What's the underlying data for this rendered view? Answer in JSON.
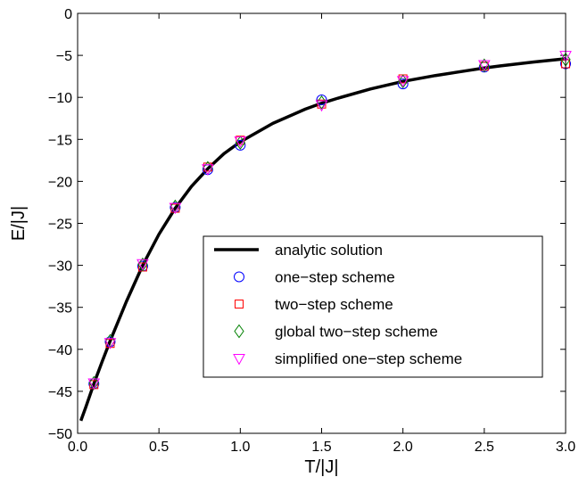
{
  "chart_data": {
    "type": "line",
    "xlabel": "T/|J|",
    "ylabel": "E/|J|",
    "xlim": [
      0.0,
      3.0
    ],
    "ylim": [
      -50,
      0
    ],
    "xticks": [
      0.0,
      0.5,
      1.0,
      1.5,
      2.0,
      2.5,
      3.0
    ],
    "xtick_labels": [
      "0.0",
      "0.5",
      "1.0",
      "1.5",
      "2.0",
      "2.5",
      "3.0"
    ],
    "yticks": [
      0,
      -5,
      -10,
      -15,
      -20,
      -25,
      -30,
      -35,
      -40,
      -45,
      -50
    ],
    "ytick_labels": [
      "0",
      "−5",
      "−10",
      "−15",
      "−20",
      "−25",
      "−30",
      "−35",
      "−40",
      "−45",
      "−50"
    ],
    "grid": false,
    "legend_position": "lower-right",
    "series": [
      {
        "name": "analytic solution",
        "kind": "line",
        "color": "#000000",
        "x": [
          0.02,
          0.05,
          0.1,
          0.15,
          0.2,
          0.3,
          0.4,
          0.5,
          0.6,
          0.7,
          0.8,
          0.9,
          1.0,
          1.2,
          1.4,
          1.5,
          1.6,
          1.8,
          2.0,
          2.2,
          2.4,
          2.5,
          2.6,
          2.8,
          3.0
        ],
        "y": [
          -48.5,
          -46.9,
          -44.1,
          -41.5,
          -39.0,
          -34.3,
          -30.0,
          -26.3,
          -23.2,
          -20.6,
          -18.5,
          -16.7,
          -15.3,
          -13.1,
          -11.4,
          -10.7,
          -10.1,
          -9.0,
          -8.1,
          -7.4,
          -6.8,
          -6.5,
          -6.25,
          -5.8,
          -5.4
        ]
      },
      {
        "name": "one−step scheme",
        "kind": "marker",
        "marker": "circle",
        "color": "#0000ff",
        "x": [
          0.1,
          0.2,
          0.4,
          0.6,
          0.8,
          1.0,
          1.5,
          2.0,
          2.5,
          3.0
        ],
        "y": [
          -44.1,
          -39.1,
          -30.1,
          -23.1,
          -18.6,
          -15.7,
          -10.3,
          -8.4,
          -6.4,
          -6.0
        ]
      },
      {
        "name": "two−step scheme",
        "kind": "marker",
        "marker": "square",
        "color": "#ff0000",
        "x": [
          0.1,
          0.2,
          0.4,
          0.6,
          0.8,
          1.0,
          1.5,
          2.0,
          2.5,
          3.0
        ],
        "y": [
          -44.2,
          -39.3,
          -30.2,
          -23.2,
          -18.3,
          -15.1,
          -10.8,
          -7.8,
          -6.3,
          -6.0
        ]
      },
      {
        "name": "global two−step scheme",
        "kind": "marker",
        "marker": "diamond",
        "color": "#008000",
        "x": [
          0.1,
          0.2,
          0.4,
          0.6,
          0.8,
          1.0,
          1.5,
          2.0,
          2.5,
          3.0
        ],
        "y": [
          -44.0,
          -39.0,
          -29.9,
          -23.0,
          -18.4,
          -15.4,
          -10.6,
          -8.1,
          -6.2,
          -5.5
        ]
      },
      {
        "name": "simplified one−step scheme",
        "kind": "marker",
        "marker": "triangle-down",
        "color": "#ff00ff",
        "x": [
          0.1,
          0.2,
          0.4,
          0.6,
          0.8,
          1.0,
          1.5,
          2.0,
          2.5,
          3.0
        ],
        "y": [
          -44.0,
          -39.2,
          -29.8,
          -23.1,
          -18.5,
          -15.2,
          -10.9,
          -8.0,
          -6.1,
          -5.0
        ]
      }
    ]
  }
}
